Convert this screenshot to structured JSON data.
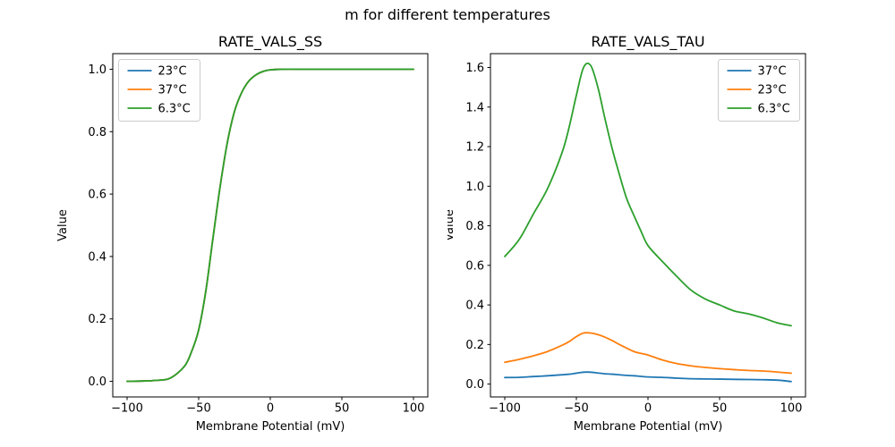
{
  "figure": {
    "title": "m for different temperatures",
    "background": "#ffffff"
  },
  "colors": {
    "blue": "#1f77b4",
    "orange": "#ff7f0e",
    "green": "#2ca02c",
    "axis": "#000000",
    "text": "#000000",
    "legend_border": "#cccccc"
  },
  "chart_data": [
    {
      "type": "line",
      "title": "RATE_VALS_SS",
      "xlabel": "Membrane Potential (mV)",
      "ylabel": "Value",
      "xlim": [
        -110,
        110
      ],
      "ylim": [
        -0.05,
        1.05
      ],
      "grid": false,
      "legend_position": "upper-left",
      "xticks": [
        {
          "v": -100,
          "label": "−100"
        },
        {
          "v": -50,
          "label": "−50"
        },
        {
          "v": 0,
          "label": "0"
        },
        {
          "v": 50,
          "label": "50"
        },
        {
          "v": 100,
          "label": "100"
        }
      ],
      "yticks": [
        {
          "v": 0.0,
          "label": "0.0"
        },
        {
          "v": 0.2,
          "label": "0.2"
        },
        {
          "v": 0.4,
          "label": "0.4"
        },
        {
          "v": 0.6,
          "label": "0.6"
        },
        {
          "v": 0.8,
          "label": "0.8"
        },
        {
          "v": 1.0,
          "label": "1.0"
        }
      ],
      "x": [
        -100,
        -90,
        -80,
        -70,
        -60,
        -55,
        -50,
        -45,
        -40,
        -35,
        -30,
        -25,
        -20,
        -15,
        -10,
        -5,
        0,
        10,
        20,
        30,
        40,
        50,
        60,
        70,
        80,
        90,
        100
      ],
      "series": [
        {
          "name": "23°C",
          "color": "#1f77b4",
          "values": [
            0.0,
            0.001,
            0.003,
            0.01,
            0.048,
            0.095,
            0.165,
            0.29,
            0.46,
            0.625,
            0.765,
            0.865,
            0.925,
            0.962,
            0.982,
            0.993,
            0.998,
            1.0,
            1.0,
            1.0,
            1.0,
            1.0,
            1.0,
            1.0,
            1.0,
            1.0,
            1.0
          ]
        },
        {
          "name": "37°C",
          "color": "#ff7f0e",
          "values": [
            0.0,
            0.001,
            0.003,
            0.01,
            0.048,
            0.095,
            0.165,
            0.29,
            0.46,
            0.625,
            0.765,
            0.865,
            0.925,
            0.962,
            0.982,
            0.993,
            0.998,
            1.0,
            1.0,
            1.0,
            1.0,
            1.0,
            1.0,
            1.0,
            1.0,
            1.0,
            1.0
          ]
        },
        {
          "name": "6.3°C",
          "color": "#2ca02c",
          "values": [
            0.0,
            0.001,
            0.003,
            0.01,
            0.048,
            0.095,
            0.165,
            0.29,
            0.46,
            0.625,
            0.765,
            0.865,
            0.925,
            0.962,
            0.982,
            0.993,
            0.998,
            1.0,
            1.0,
            1.0,
            1.0,
            1.0,
            1.0,
            1.0,
            1.0,
            1.0,
            1.0
          ]
        }
      ]
    },
    {
      "type": "line",
      "title": "RATE_VALS_TAU",
      "xlabel": "Membrane Potential (mV)",
      "ylabel": "Value",
      "xlim": [
        -110,
        110
      ],
      "ylim": [
        -0.065,
        1.67
      ],
      "grid": false,
      "legend_position": "upper-right",
      "xticks": [
        {
          "v": -100,
          "label": "−100"
        },
        {
          "v": -50,
          "label": "−50"
        },
        {
          "v": 0,
          "label": "0"
        },
        {
          "v": 50,
          "label": "50"
        },
        {
          "v": 100,
          "label": "100"
        }
      ],
      "yticks": [
        {
          "v": 0.0,
          "label": "0.0"
        },
        {
          "v": 0.2,
          "label": "0.2"
        },
        {
          "v": 0.4,
          "label": "0.4"
        },
        {
          "v": 0.6,
          "label": "0.6"
        },
        {
          "v": 0.8,
          "label": "0.8"
        },
        {
          "v": 1.0,
          "label": "1.0"
        },
        {
          "v": 1.2,
          "label": "1.2"
        },
        {
          "v": 1.4,
          "label": "1.4"
        },
        {
          "v": 1.6,
          "label": "1.6"
        }
      ],
      "x": [
        -100,
        -90,
        -80,
        -70,
        -60,
        -55,
        -50,
        -45,
        -40,
        -35,
        -30,
        -25,
        -20,
        -15,
        -10,
        -5,
        0,
        10,
        20,
        30,
        40,
        50,
        60,
        70,
        80,
        90,
        100
      ],
      "series": [
        {
          "name": "37°C",
          "color": "#1f77b4",
          "values": [
            0.033,
            0.034,
            0.038,
            0.042,
            0.047,
            0.05,
            0.055,
            0.06,
            0.06,
            0.056,
            0.052,
            0.05,
            0.047,
            0.044,
            0.042,
            0.039,
            0.036,
            0.034,
            0.03,
            0.027,
            0.026,
            0.025,
            0.024,
            0.023,
            0.022,
            0.02,
            0.013
          ]
        },
        {
          "name": "23°C",
          "color": "#ff7f0e",
          "values": [
            0.11,
            0.125,
            0.143,
            0.165,
            0.196,
            0.215,
            0.24,
            0.258,
            0.258,
            0.25,
            0.237,
            0.22,
            0.2,
            0.182,
            0.165,
            0.155,
            0.147,
            0.122,
            0.104,
            0.092,
            0.084,
            0.078,
            0.073,
            0.069,
            0.066,
            0.061,
            0.055
          ]
        },
        {
          "name": "6.3°C",
          "color": "#2ca02c",
          "values": [
            0.645,
            0.73,
            0.86,
            0.99,
            1.17,
            1.3,
            1.46,
            1.6,
            1.61,
            1.5,
            1.34,
            1.19,
            1.06,
            0.94,
            0.855,
            0.775,
            0.7,
            0.62,
            0.545,
            0.475,
            0.43,
            0.4,
            0.37,
            0.355,
            0.335,
            0.31,
            0.295
          ]
        }
      ]
    }
  ]
}
